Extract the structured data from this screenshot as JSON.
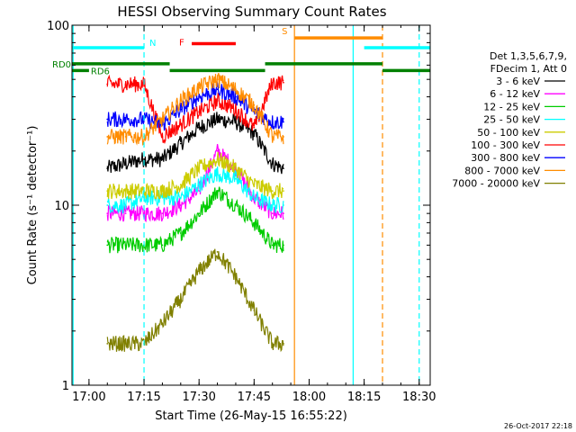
{
  "chart_data": {
    "type": "line",
    "title": "HESSI Observing Summary Count Rates",
    "xlabel": "Start Time (26-May-15 16:55:22)",
    "ylabel": "Count Rate (s⁻¹ detector⁻¹)",
    "xlim": [
      "16:55:22",
      "18:33:00"
    ],
    "ylim": [
      1,
      100
    ],
    "yscale": "log",
    "grid": false,
    "legend_position": "right",
    "x_ticks": [
      "17:00",
      "17:15",
      "17:30",
      "17:45",
      "18:00",
      "18:15",
      "18:30"
    ],
    "y_ticks": [
      "1",
      "10",
      "100"
    ],
    "legend_header": [
      "Det 1,3,5,6,7,9,",
      "FDecim 1, Att 0"
    ],
    "series": [
      {
        "name": "3 - 6 keV",
        "color": "#000000",
        "x": [
          "17:05",
          "17:10",
          "17:15",
          "17:20",
          "17:25",
          "17:30",
          "17:35",
          "17:40",
          "17:45",
          "17:50",
          "17:53"
        ],
        "values": [
          16,
          17,
          18,
          18,
          22,
          27,
          30,
          29,
          25,
          17,
          16
        ]
      },
      {
        "name": "6 - 12 keV",
        "color": "#ff00ff",
        "x": [
          "17:05",
          "17:10",
          "17:15",
          "17:20",
          "17:25",
          "17:30",
          "17:35",
          "17:40",
          "17:45",
          "17:50",
          "17:53"
        ],
        "values": [
          9,
          9,
          9,
          9,
          10,
          12,
          20,
          16,
          11,
          9,
          9
        ]
      },
      {
        "name": "12 - 25 keV",
        "color": "#00cc00",
        "x": [
          "17:05",
          "17:10",
          "17:15",
          "17:20",
          "17:25",
          "17:30",
          "17:35",
          "17:40",
          "17:45",
          "17:50",
          "17:53"
        ],
        "values": [
          6,
          6,
          6,
          6,
          7,
          9,
          12,
          10,
          8,
          6,
          6
        ]
      },
      {
        "name": "25 - 50 keV",
        "color": "#00ffff",
        "x": [
          "17:05",
          "17:10",
          "17:15",
          "17:20",
          "17:25",
          "17:30",
          "17:35",
          "17:40",
          "17:45",
          "17:50",
          "17:53"
        ],
        "values": [
          10,
          10,
          11,
          11,
          11,
          13,
          15,
          14,
          11,
          10,
          10
        ]
      },
      {
        "name": "50 - 100 keV",
        "color": "#cccc00",
        "x": [
          "17:05",
          "17:10",
          "17:15",
          "17:20",
          "17:25",
          "17:30",
          "17:35",
          "17:40",
          "17:45",
          "17:50",
          "17:53"
        ],
        "values": [
          12,
          12,
          12,
          12,
          13,
          16,
          18,
          16,
          13,
          12,
          12
        ]
      },
      {
        "name": "100 - 300 keV",
        "color": "#ff0000",
        "x": [
          "17:05",
          "17:10",
          "17:15",
          "17:20",
          "17:25",
          "17:30",
          "17:35",
          "17:40",
          "17:45",
          "17:50",
          "17:53"
        ],
        "values": [
          47,
          47,
          47,
          24,
          28,
          33,
          38,
          34,
          27,
          48,
          48
        ]
      },
      {
        "name": "300 - 800 keV",
        "color": "#0000ff",
        "x": [
          "17:05",
          "17:10",
          "17:15",
          "17:20",
          "17:25",
          "17:30",
          "17:35",
          "17:40",
          "17:45",
          "17:50",
          "17:53"
        ],
        "values": [
          30,
          30,
          30,
          28,
          34,
          40,
          44,
          40,
          33,
          29,
          29
        ]
      },
      {
        "name": "800 - 7000 keV",
        "color": "#ff8c00",
        "x": [
          "17:05",
          "17:10",
          "17:15",
          "17:20",
          "17:25",
          "17:30",
          "17:35",
          "17:40",
          "17:45",
          "17:50",
          "17:53"
        ],
        "values": [
          24,
          24,
          24,
          30,
          38,
          45,
          50,
          44,
          36,
          24,
          24
        ]
      },
      {
        "name": "7000 - 20000 keV",
        "color": "#808000",
        "x": [
          "17:05",
          "17:10",
          "17:15",
          "17:20",
          "17:25",
          "17:30",
          "17:35",
          "17:40",
          "17:45",
          "17:50",
          "17:53"
        ],
        "values": [
          1.7,
          1.7,
          1.7,
          2.2,
          3.0,
          4.3,
          5.5,
          4.0,
          2.6,
          1.7,
          1.7
        ]
      }
    ],
    "flag_bars": [
      {
        "label": "N",
        "color": "#00ffff",
        "value": 75,
        "start": "16:55:22",
        "end": "17:15"
      },
      {
        "label": "",
        "color": "#00ffff",
        "value": 75,
        "start": "18:15",
        "end": "18:33"
      },
      {
        "label": "S",
        "color": "#ff8c00",
        "value": 85,
        "start": "17:56",
        "end": "18:20"
      },
      {
        "label": "F",
        "color": "#ff0000",
        "value": 79,
        "start": "17:28",
        "end": "17:40"
      },
      {
        "label": "RD0",
        "color": "#008000",
        "value": 61,
        "start": "16:55:22",
        "end": "17:22"
      },
      {
        "label": "",
        "color": "#008000",
        "value": 61,
        "start": "17:48",
        "end": "18:20"
      },
      {
        "label": "RD6",
        "color": "#008000",
        "value": 56,
        "start": "16:55:22",
        "end": "17:00"
      },
      {
        "label": "",
        "color": "#008000",
        "value": 56,
        "start": "17:22",
        "end": "17:48"
      },
      {
        "label": "",
        "color": "#008000",
        "value": 56,
        "start": "18:20",
        "end": "18:33"
      }
    ],
    "vlines": [
      {
        "x": "16:55:40",
        "color": "#00ffff",
        "style": "solid"
      },
      {
        "x": "17:15",
        "color": "#00ffff",
        "style": "dashed"
      },
      {
        "x": "17:56",
        "color": "#ff8c00",
        "style": "solid"
      },
      {
        "x": "18:12",
        "color": "#00ffff",
        "style": "solid"
      },
      {
        "x": "18:20",
        "color": "#ff8c00",
        "style": "dashed"
      },
      {
        "x": "18:30",
        "color": "#00ffff",
        "style": "dashed"
      }
    ]
  },
  "footer": {
    "date": "26-Oct-2017 22:18"
  }
}
